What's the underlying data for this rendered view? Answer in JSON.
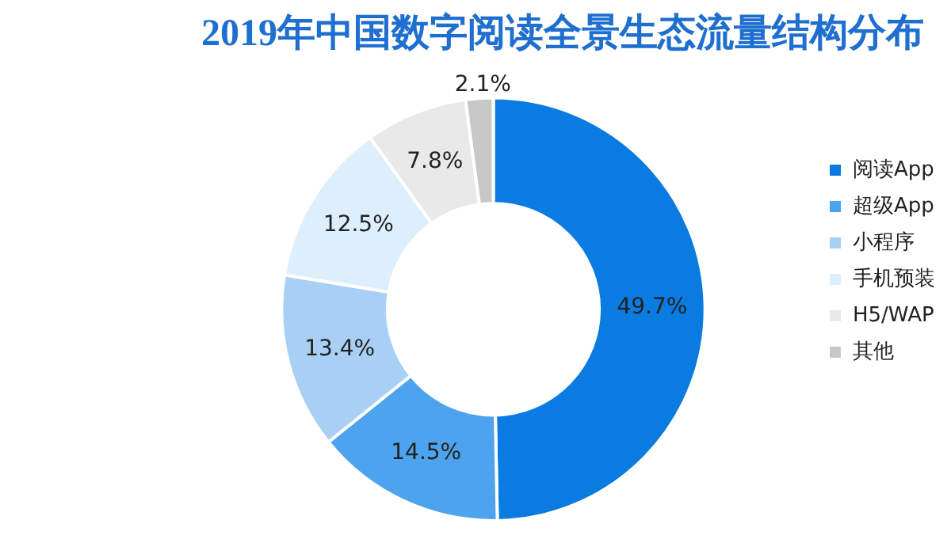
{
  "chart_data": {
    "type": "donut",
    "title": "2019年中国数字阅读全景生态流量结构分布",
    "categories": [
      "阅读App",
      "超级App",
      "小程序",
      "手机预装",
      "H5/WAP",
      "其他"
    ],
    "values": [
      49.7,
      14.5,
      13.4,
      12.5,
      7.8,
      2.1
    ],
    "value_labels": [
      "49.7%",
      "14.5%",
      "13.4%",
      "12.5%",
      "7.8%",
      "2.1%"
    ],
    "colors": [
      "#0a7be0",
      "#4da3ee",
      "#a8d0f5",
      "#ddeefc",
      "#e9e9e9",
      "#c8c8c8"
    ],
    "legend": "right"
  }
}
